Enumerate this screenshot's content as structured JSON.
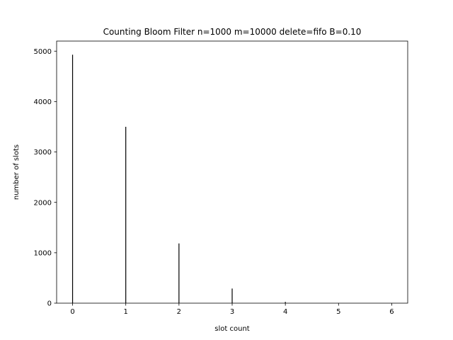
{
  "chart_data": {
    "type": "bar",
    "title": "Counting Bloom Filter n=1000 m=10000 delete=fifo B=0.10",
    "xlabel": "slot count",
    "ylabel": "number of slots",
    "x": [
      0,
      1,
      2,
      3,
      4,
      5,
      6
    ],
    "values": [
      4930,
      3500,
      1185,
      290,
      25,
      2,
      0
    ],
    "xlim": [
      -0.3,
      6.3
    ],
    "ylim": [
      0,
      5200
    ],
    "xticks": [
      0,
      1,
      2,
      3,
      4,
      5,
      6
    ],
    "yticks": [
      0,
      1000,
      2000,
      3000,
      4000,
      5000
    ],
    "grid": false,
    "bar_color": "#000000"
  }
}
